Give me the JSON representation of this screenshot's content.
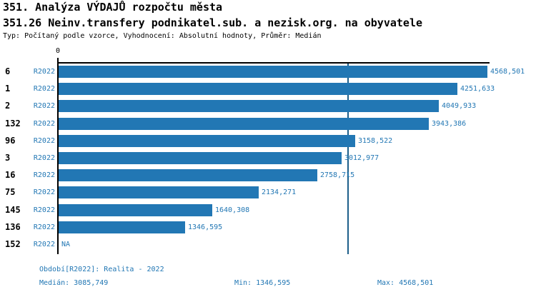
{
  "header": {
    "title": "351. Analýza VÝDAJŮ rozpočtu města",
    "subtitle": "351.26 Neinv.transfery podnikatel.sub. a nezisk.org. na obyvatele",
    "meta": "Typ: Počítaný podle vzorce, Vyhodnocení: Absolutní hodnoty, Průměr: Medián"
  },
  "chart_data": {
    "type": "bar",
    "orientation": "horizontal",
    "x_zero_label": "0",
    "xlim": [
      0,
      4568.501
    ],
    "series_name": "R2022",
    "categories": [
      "6",
      "1",
      "2",
      "132",
      "96",
      "3",
      "16",
      "75",
      "145",
      "136",
      "152"
    ],
    "rows": [
      {
        "rank": "6",
        "period": "R2022",
        "value": 4568.501,
        "label": "4568,501"
      },
      {
        "rank": "1",
        "period": "R2022",
        "value": 4251.633,
        "label": "4251,633"
      },
      {
        "rank": "2",
        "period": "R2022",
        "value": 4049.933,
        "label": "4049,933"
      },
      {
        "rank": "132",
        "period": "R2022",
        "value": 3943.386,
        "label": "3943,386"
      },
      {
        "rank": "96",
        "period": "R2022",
        "value": 3158.522,
        "label": "3158,522"
      },
      {
        "rank": "3",
        "period": "R2022",
        "value": 3012.977,
        "label": "3012,977"
      },
      {
        "rank": "16",
        "period": "R2022",
        "value": 2758.715,
        "label": "2758,715"
      },
      {
        "rank": "75",
        "period": "R2022",
        "value": 2134.271,
        "label": "2134,271"
      },
      {
        "rank": "145",
        "period": "R2022",
        "value": 1640.308,
        "label": "1640,308"
      },
      {
        "rank": "136",
        "period": "R2022",
        "value": 1346.595,
        "label": "1346,595"
      },
      {
        "rank": "152",
        "period": "R2022",
        "value": null,
        "label": "NA"
      }
    ],
    "median_value": 3085.749,
    "bar_color": "#2277b4",
    "text_blue_color": "#2277b4",
    "median_line_color": "#1d5f8a",
    "axis_color": "#000000",
    "grid": false,
    "legend": false
  },
  "footer": {
    "period": "Období[R2022]: Realita - 2022",
    "median": "Medián: 3085,749",
    "min": "Min: 1346,595",
    "max": "Max: 4568,501"
  }
}
